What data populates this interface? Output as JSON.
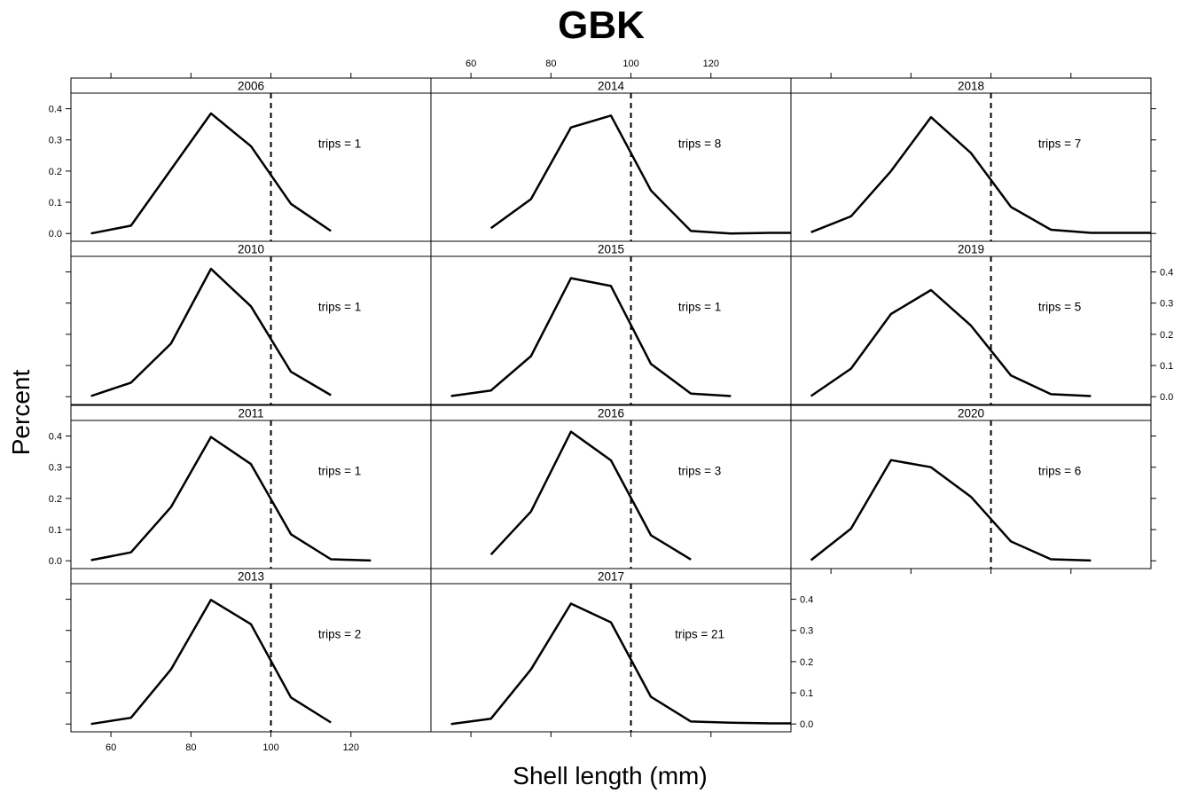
{
  "chart_data": {
    "type": "line",
    "title": "GBK",
    "xlabel": "Shell length (mm)",
    "ylabel": "Percent",
    "xlim": [
      50,
      140
    ],
    "ylim": [
      -0.025,
      0.45
    ],
    "x_ticks": [
      60,
      80,
      100,
      120
    ],
    "x_tick_labels": [
      "60",
      "80",
      "100",
      "120"
    ],
    "y_ticks": [
      0.0,
      0.1,
      0.2,
      0.3,
      0.4
    ],
    "y_tick_labels": [
      "0.0",
      "0.1",
      "0.2",
      "0.3",
      "0.4"
    ],
    "reference_line": {
      "x": 100,
      "style": "dashed"
    },
    "annotation_x": 105,
    "annotation_y": 0.29,
    "panels": [
      {
        "year": "2006",
        "annotation": "trips = 1",
        "x": [
          55,
          65,
          75,
          85,
          95,
          105,
          115
        ],
        "y": [
          0.0,
          0.025,
          0.205,
          0.385,
          0.28,
          0.095,
          0.008
        ]
      },
      {
        "year": "2014",
        "annotation": "trips = 8",
        "x": [
          65,
          75,
          85,
          95,
          105,
          115,
          125,
          135,
          140
        ],
        "y": [
          0.017,
          0.11,
          0.34,
          0.378,
          0.138,
          0.008,
          0.0,
          0.002,
          0.002
        ]
      },
      {
        "year": "2018",
        "annotation": "trips = 7",
        "x": [
          55,
          65,
          75,
          85,
          95,
          105,
          115,
          125,
          135,
          140
        ],
        "y": [
          0.004,
          0.055,
          0.2,
          0.373,
          0.258,
          0.085,
          0.012,
          0.002,
          0.002,
          0.002
        ]
      },
      {
        "year": "2010",
        "annotation": "trips = 1",
        "x": [
          55,
          65,
          75,
          85,
          95,
          105,
          115
        ],
        "y": [
          0.002,
          0.045,
          0.17,
          0.41,
          0.29,
          0.08,
          0.005
        ]
      },
      {
        "year": "2015",
        "annotation": "trips = 1",
        "x": [
          55,
          65,
          75,
          85,
          95,
          105,
          115,
          125
        ],
        "y": [
          0.002,
          0.02,
          0.13,
          0.38,
          0.355,
          0.105,
          0.01,
          0.002
        ]
      },
      {
        "year": "2019",
        "annotation": "trips = 5",
        "x": [
          55,
          65,
          75,
          85,
          95,
          105,
          115,
          125
        ],
        "y": [
          0.002,
          0.09,
          0.265,
          0.342,
          0.228,
          0.068,
          0.008,
          0.002
        ]
      },
      {
        "year": "2011",
        "annotation": "trips = 1",
        "x": [
          55,
          65,
          75,
          85,
          95,
          105,
          115,
          125
        ],
        "y": [
          0.002,
          0.027,
          0.172,
          0.397,
          0.31,
          0.085,
          0.005,
          0.001
        ]
      },
      {
        "year": "2016",
        "annotation": "trips = 3",
        "x": [
          65,
          75,
          85,
          95,
          105,
          115
        ],
        "y": [
          0.02,
          0.158,
          0.414,
          0.322,
          0.082,
          0.004
        ]
      },
      {
        "year": "2020",
        "annotation": "trips = 6",
        "x": [
          55,
          65,
          75,
          85,
          95,
          105,
          115,
          125
        ],
        "y": [
          0.002,
          0.103,
          0.323,
          0.3,
          0.205,
          0.062,
          0.005,
          0.001
        ]
      },
      {
        "year": "2013",
        "annotation": "trips = 2",
        "x": [
          55,
          65,
          75,
          85,
          95,
          105,
          115
        ],
        "y": [
          0.0,
          0.02,
          0.175,
          0.398,
          0.32,
          0.085,
          0.005
        ]
      },
      {
        "year": "2017",
        "annotation": "trips = 21",
        "x": [
          55,
          65,
          75,
          85,
          95,
          105,
          115,
          125,
          135,
          140
        ],
        "y": [
          0.0,
          0.017,
          0.175,
          0.386,
          0.326,
          0.087,
          0.008,
          0.004,
          0.002,
          0.002
        ]
      }
    ]
  }
}
